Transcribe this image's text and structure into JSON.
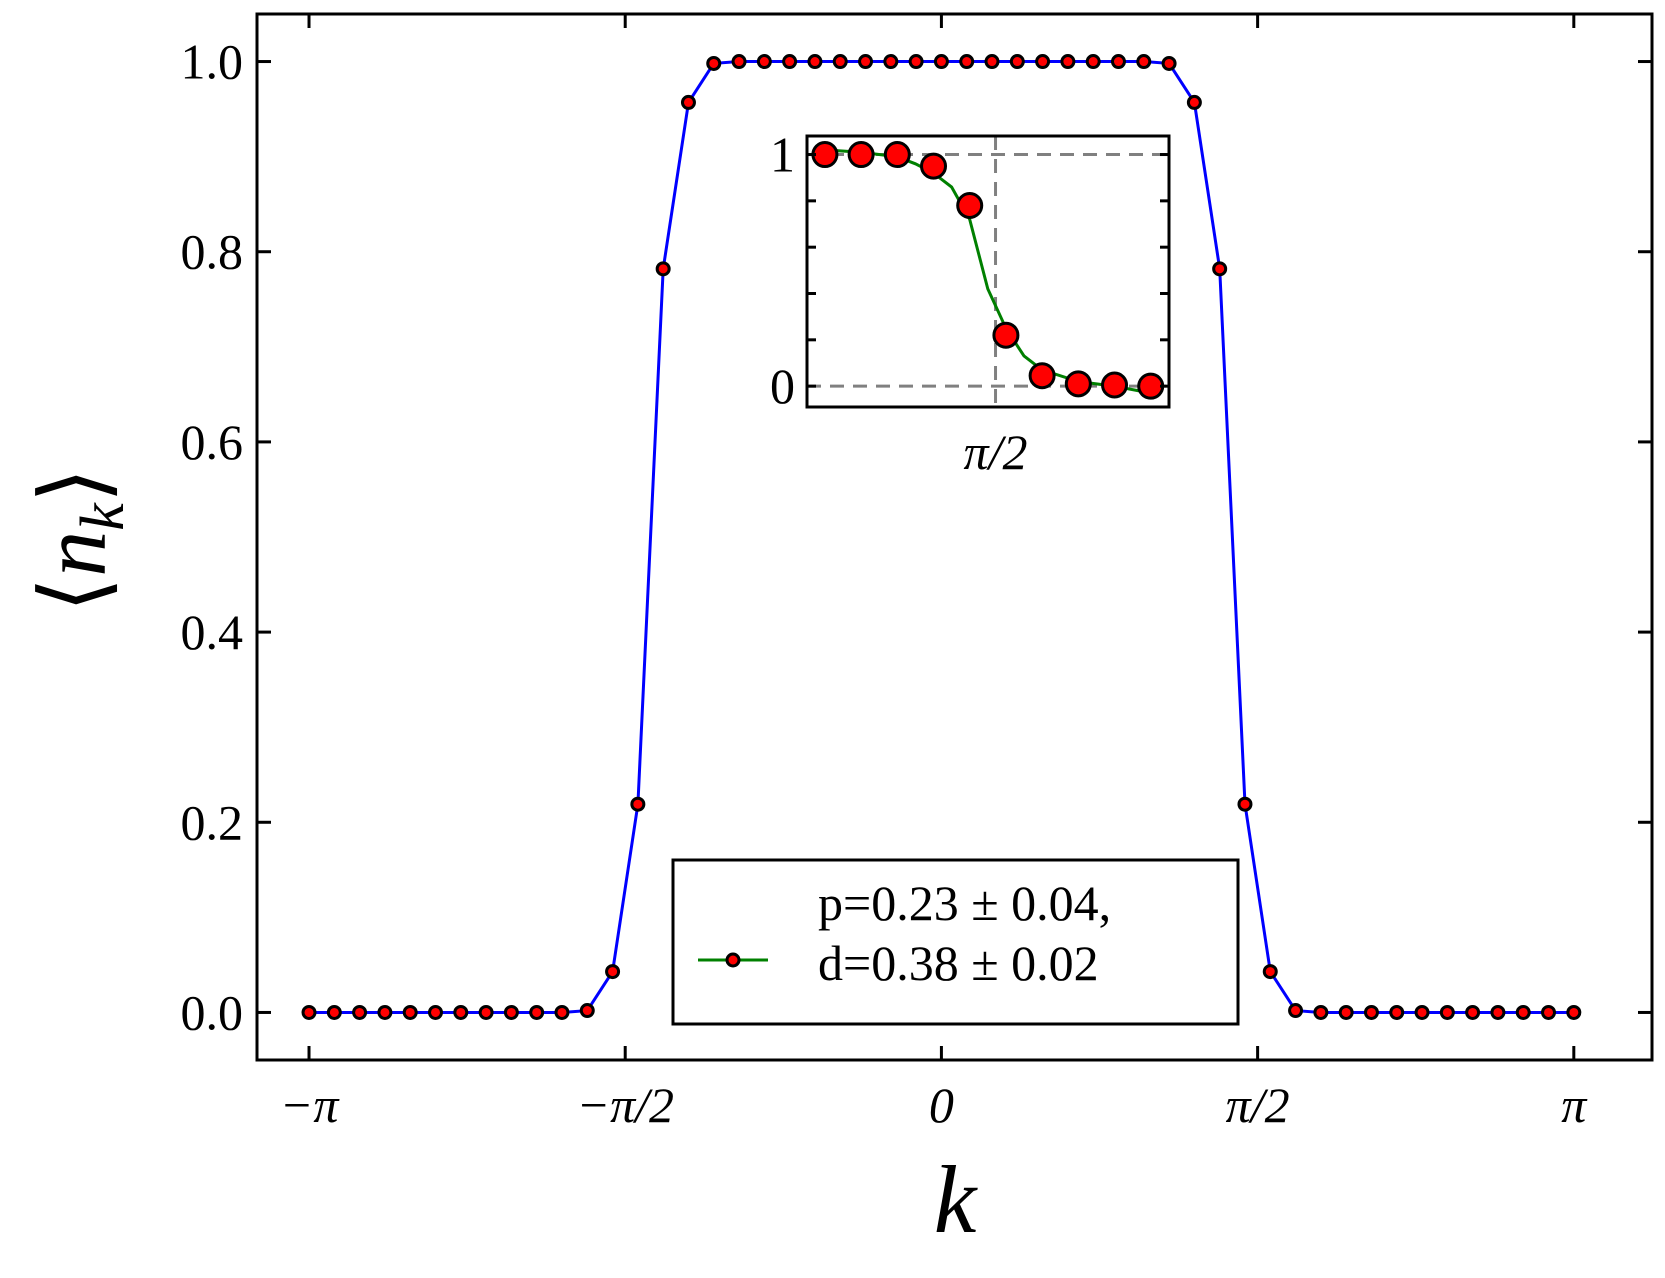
{
  "chart_data": [
    {
      "type": "line",
      "xlabel": "k",
      "ylabel": "⟨n_k⟩",
      "xlim": [
        -3.4,
        3.53
      ],
      "ylim": [
        -0.05,
        1.05
      ],
      "xticks": [
        {
          "value": -3.14159,
          "label": "−π"
        },
        {
          "value": -1.5708,
          "label": "−π/2"
        },
        {
          "value": 0,
          "label": "0"
        },
        {
          "value": 1.5708,
          "label": "π/2"
        },
        {
          "value": 3.14159,
          "label": "π"
        }
      ],
      "yticks": [
        {
          "value": 0.0,
          "label": "0.0"
        },
        {
          "value": 0.2,
          "label": "0.2"
        },
        {
          "value": 0.4,
          "label": "0.4"
        },
        {
          "value": 0.6,
          "label": "0.6"
        },
        {
          "value": 0.8,
          "label": "0.8"
        },
        {
          "value": 1.0,
          "label": "1.0"
        }
      ],
      "grid": false,
      "legend_position": "lower-center",
      "series": [
        {
          "name": "",
          "line_color": "#0000ff",
          "marker_color": "#ff0000",
          "x": [
            -3.1416,
            -3.0159,
            -2.8903,
            -2.7646,
            -2.6389,
            -2.5133,
            -2.3876,
            -2.2619,
            -2.1363,
            -2.0106,
            -1.885,
            -1.7593,
            -1.6336,
            -1.508,
            -1.3823,
            -1.2566,
            -1.131,
            -1.0053,
            -0.8796,
            -0.754,
            -0.6283,
            -0.5027,
            -0.377,
            -0.2513,
            -0.1257,
            0.0,
            0.1257,
            0.2513,
            0.377,
            0.5027,
            0.6283,
            0.754,
            0.8796,
            1.0053,
            1.131,
            1.2566,
            1.3823,
            1.508,
            1.6336,
            1.7593,
            1.885,
            2.0106,
            2.1363,
            2.2619,
            2.3876,
            2.5133,
            2.6389,
            2.7646,
            2.8903,
            3.0159,
            3.1416
          ],
          "y": [
            0,
            0,
            0,
            0,
            0,
            0,
            0,
            0,
            0,
            0,
            0,
            0.002,
            0.043,
            0.219,
            0.782,
            0.957,
            0.998,
            1,
            1,
            1,
            1,
            1,
            1,
            1,
            1,
            1,
            1,
            1,
            1,
            1,
            1,
            1,
            1,
            1,
            0.998,
            0.957,
            0.782,
            0.219,
            0.043,
            0.002,
            0,
            0,
            0,
            0,
            0,
            0,
            0,
            0,
            0,
            0,
            0
          ]
        }
      ],
      "legend": {
        "text_line1": "p=0.23 ± 0.04,",
        "text_line2": "d=0.38 ± 0.02",
        "line_color": "#008000",
        "marker_color": "#ff0000"
      }
    },
    {
      "type": "line",
      "inset": true,
      "xticks": [
        {
          "value": 1.5708,
          "label": "π/2"
        }
      ],
      "yticks": [
        {
          "value": 0,
          "label": "0"
        },
        {
          "value": 1,
          "label": "1"
        }
      ],
      "xlim": [
        1.05,
        2.05
      ],
      "ylim": [
        -0.09,
        1.08
      ],
      "reference_lines": {
        "y": [
          0,
          1
        ],
        "x": [
          1.5708
        ],
        "color": "#808080",
        "style": "dashed"
      },
      "points": {
        "color": "#ff0000",
        "x": [
          1.0995,
          1.1995,
          1.2995,
          1.3995,
          1.4995,
          1.5995,
          1.6995,
          1.7995,
          1.8995,
          1.9995
        ],
        "y": [
          1.0,
          1.0,
          1.0,
          0.95,
          0.78,
          0.22,
          0.045,
          0.01,
          0.005,
          0.0
        ]
      },
      "fit": {
        "color": "#008000",
        "x": [
          1.0995,
          1.1995,
          1.2995,
          1.3495,
          1.3995,
          1.4495,
          1.4995,
          1.5495,
          1.5995,
          1.6495,
          1.6995,
          1.7995,
          1.8995,
          1.9995
        ],
        "y": [
          1.02,
          1.01,
          0.99,
          0.96,
          0.92,
          0.86,
          0.72,
          0.42,
          0.25,
          0.13,
          0.07,
          0.02,
          0.0,
          -0.03
        ]
      }
    }
  ]
}
